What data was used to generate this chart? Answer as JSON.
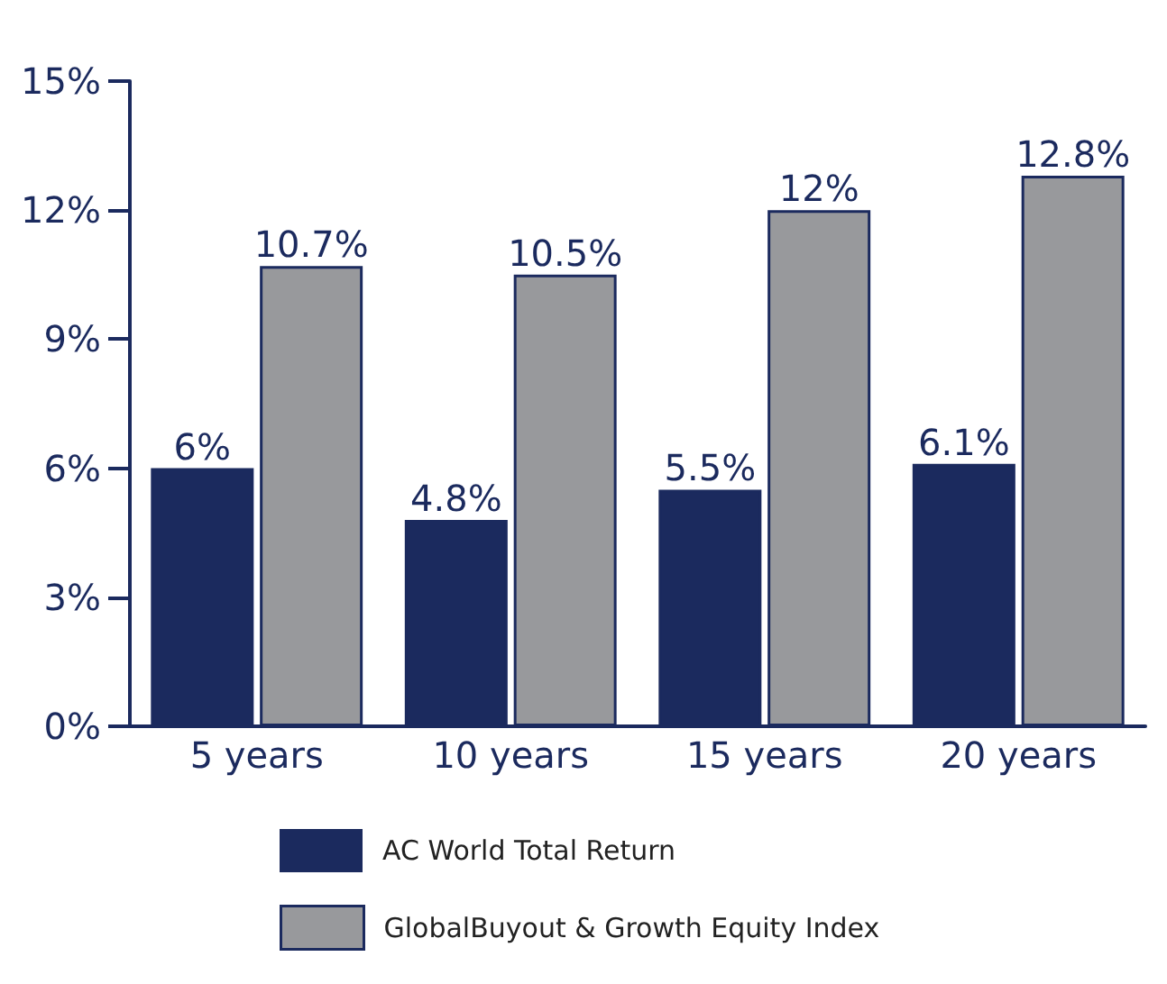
{
  "chart_data": {
    "type": "bar",
    "categories": [
      "5 years",
      "10 years",
      "15 years",
      "20 years"
    ],
    "series": [
      {
        "name": "AC World Total Return",
        "color": "#1b2a5e",
        "values": [
          6,
          4.8,
          5.5,
          6.1
        ],
        "value_labels": [
          "6%",
          "4.8%",
          "5.5%",
          "6.1%"
        ]
      },
      {
        "name": "GlobalBuyout & Growth Equity Index",
        "color": "#98999c",
        "values": [
          10.7,
          10.5,
          12,
          12.8
        ],
        "value_labels": [
          "10.7%",
          "10.5%",
          "12%",
          "12.8%"
        ]
      }
    ],
    "ylim": [
      0,
      15
    ],
    "yticks": [
      {
        "value": 0,
        "label": "0%"
      },
      {
        "value": 3,
        "label": "3%"
      },
      {
        "value": 6,
        "label": "6%"
      },
      {
        "value": 9,
        "label": "9%"
      },
      {
        "value": 12,
        "label": "12%"
      },
      {
        "value": 15,
        "label": "15%"
      }
    ],
    "grid": false,
    "legend": "bottom"
  }
}
